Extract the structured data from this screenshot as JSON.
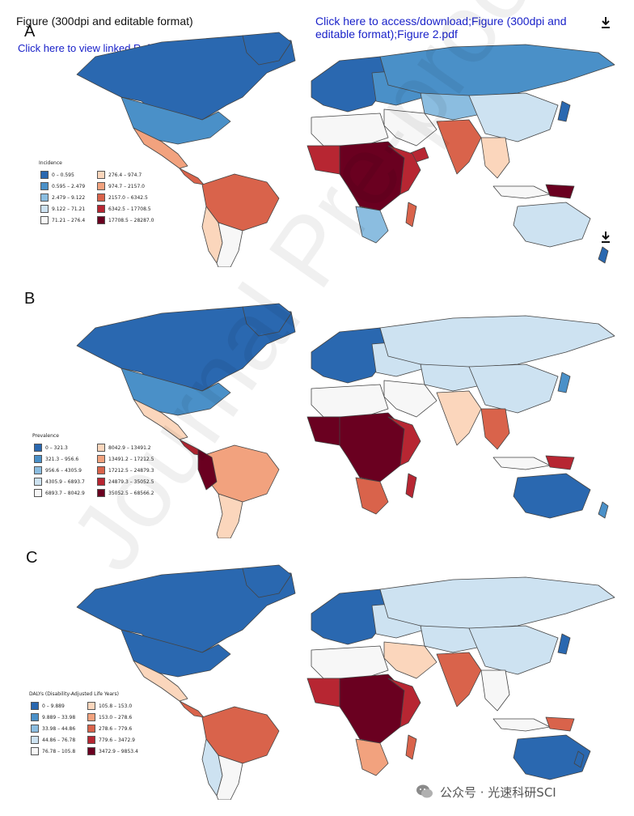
{
  "header": {
    "figure_title": "Figure (300dpi and editable format)",
    "linked_references": "Click here to view linked References",
    "access_download": "Click here to access/download;Figure (300dpi and editable format);Figure 2.pdf"
  },
  "colors": {
    "blue_dark": "#2a68b0",
    "blue_mid": "#4a90c8",
    "blue_light": "#8bbde0",
    "blue_pale": "#cde2f1",
    "white": "#f7f7f7",
    "peach": "#fbd6bc",
    "salmon": "#f2a27e",
    "orange_red": "#d9634b",
    "red": "#b72632",
    "dark_red": "#6a0020",
    "link": "#1a22c9"
  },
  "panels": [
    {
      "letter": "A",
      "legend_title": "Incidence",
      "legend_items": [
        "0 – 0.595",
        "0.595 – 2.479",
        "2.479 – 9.122",
        "9.122 – 71.21",
        "71.21 – 276.4",
        "276.4 – 974.7",
        "974.7 – 2157.0",
        "2157.0 – 6342.5",
        "6342.5 – 17708.5",
        "17708.5 – 28287.0"
      ]
    },
    {
      "letter": "B",
      "legend_title": "Prevalence",
      "legend_items": [
        "0 – 321.3",
        "321.3 – 956.6",
        "956.6 – 4305.9",
        "4305.9 – 6893.7",
        "6893.7 – 8042.9",
        "8042.9 – 13491.2",
        "13491.2 – 17212.5",
        "17212.5 – 24879.3",
        "24879.3 – 35052.5",
        "35052.5 – 68566.2"
      ]
    },
    {
      "letter": "C",
      "legend_title": "DALYs (Disability-Adjusted Life Years)",
      "legend_items": [
        "0 – 9.889",
        "9.889 – 33.98",
        "33.98 – 44.86",
        "44.86 – 76.78",
        "76.78 – 105.8",
        "105.8 – 153.0",
        "153.0 – 278.6",
        "278.6 – 779.6",
        "779.6 – 3472.9",
        "3472.9 – 9853.4"
      ]
    }
  ],
  "watermark": "Journal Pre-proofs",
  "footer": {
    "wechat_label": "公众号 · 光速科研SCI"
  }
}
